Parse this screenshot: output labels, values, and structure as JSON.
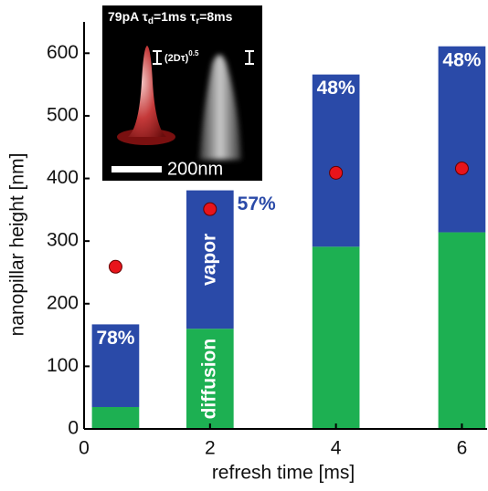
{
  "chart_data": {
    "type": "bar",
    "stacked": true,
    "x_label": "refresh time [ms]",
    "y_label": "nanopillar height [nm]",
    "x": [
      0.5,
      2,
      4,
      6
    ],
    "series": [
      {
        "name": "diffusion",
        "color": "#1db052",
        "values": [
          35,
          160,
          291,
          314
        ]
      },
      {
        "name": "vapor",
        "color": "#2a4aa8",
        "values": [
          132,
          221,
          275,
          297
        ]
      }
    ],
    "percent_labels": [
      "78%",
      "57%",
      "48%",
      "48%"
    ],
    "markers": {
      "color": "#e8141b",
      "values": [
        259,
        351,
        409,
        416
      ]
    },
    "xlim": [
      0,
      6.4
    ],
    "xticks": [
      0,
      2,
      4,
      6
    ],
    "ylim": [
      0,
      650
    ],
    "yticks": [
      0,
      100,
      200,
      300,
      400,
      500,
      600
    ],
    "grid": false
  },
  "inset": {
    "header": [
      "79pA τ",
      "d",
      "=1ms τ",
      "r",
      "=8ms"
    ],
    "diffusion_length": [
      "(2Dτ)",
      "0.5"
    ],
    "scale_bar": "200nm"
  }
}
